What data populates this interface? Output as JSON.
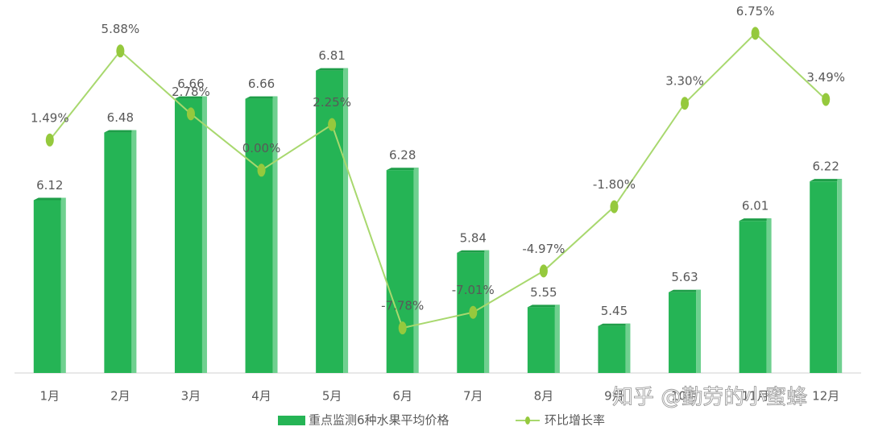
{
  "chart_data": {
    "type": "bar-line",
    "categories": [
      "1月",
      "2月",
      "3月",
      "4月",
      "5月",
      "6月",
      "7月",
      "8月",
      "9月",
      "10月",
      "11月",
      "12月"
    ],
    "series": [
      {
        "name": "重点监测6种水果平均价格",
        "type": "bar",
        "color": "#25b455",
        "values": [
          6.12,
          6.48,
          6.66,
          6.66,
          6.81,
          6.28,
          5.84,
          5.55,
          5.45,
          5.63,
          6.01,
          6.22
        ]
      },
      {
        "name": "环比增长率",
        "type": "line",
        "axis": "y2",
        "color": "#a8d86e",
        "values": [
          1.49,
          5.88,
          2.78,
          0.0,
          2.25,
          -7.78,
          -7.01,
          -4.97,
          -1.8,
          3.3,
          6.75,
          3.49
        ],
        "value_labels": [
          "1.49%",
          "5.88%",
          "2.78%",
          "0.00%",
          "2.25%",
          "-7.78%",
          "-7.01%",
          "-4.97%",
          "-1.80%",
          "3.30%",
          "6.75%",
          "3.49%"
        ]
      }
    ],
    "ylim": [
      5.2,
      7.1
    ],
    "y2lim": [
      -10,
      7.6
    ],
    "watermark": "知乎 @勤劳的小蜜蜂"
  }
}
